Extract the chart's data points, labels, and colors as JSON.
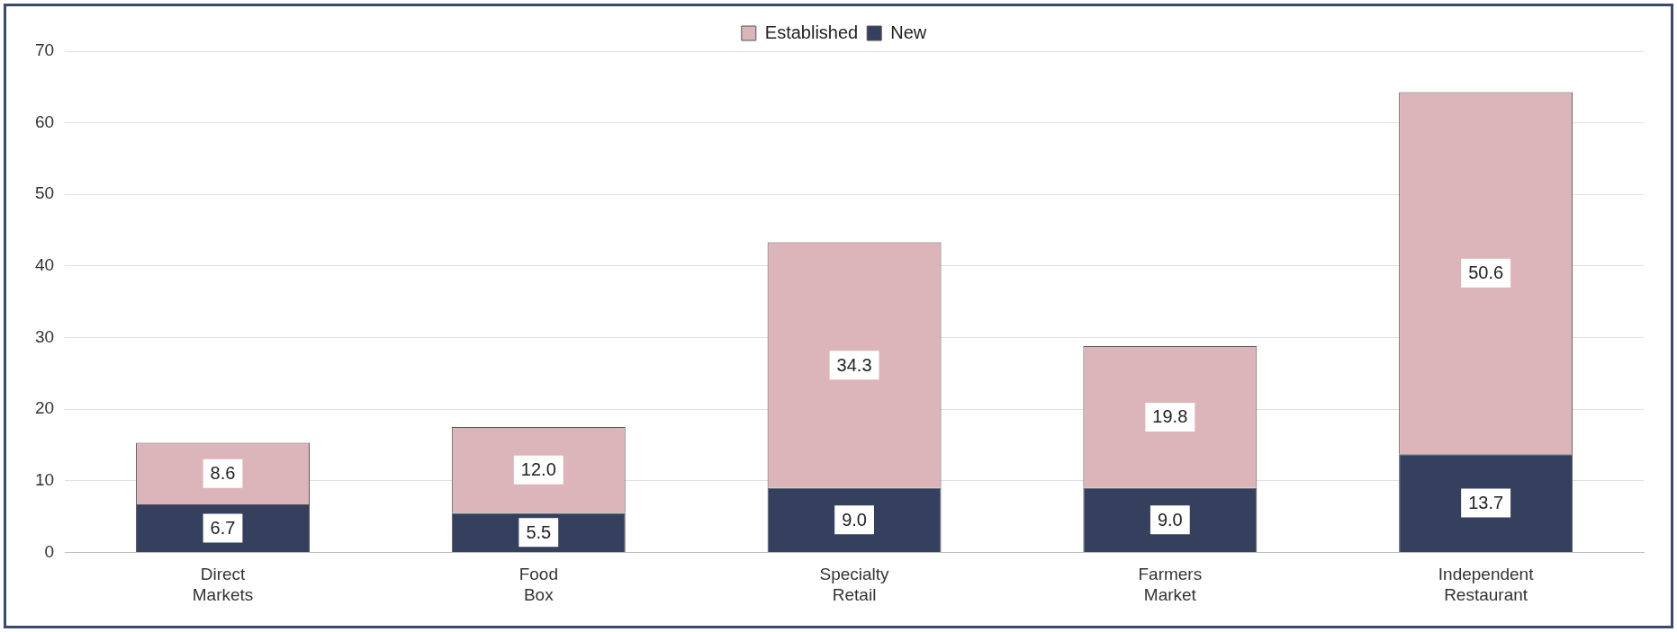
{
  "chart_data": {
    "type": "bar",
    "stacked": true,
    "categories": [
      "Direct Markets",
      "Food Box",
      "Specialty Retail",
      "Farmers Market",
      "Independent Restaurant"
    ],
    "series": [
      {
        "name": "New",
        "color": "#35405f",
        "values": [
          6.7,
          5.5,
          9.0,
          9.0,
          13.7
        ],
        "value_labels": [
          "6.7",
          "5.5",
          "9.0",
          "9.0",
          "13.7"
        ]
      },
      {
        "name": "Established",
        "color": "#dcb5ba",
        "values": [
          8.6,
          12.0,
          34.3,
          19.8,
          50.6
        ],
        "value_labels": [
          "8.6",
          "12.0",
          "34.3",
          "19.8",
          "50.6"
        ]
      }
    ],
    "ylim": [
      0,
      70
    ],
    "yticks": [
      0,
      10,
      20,
      30,
      40,
      50,
      60,
      70
    ],
    "grid": "y",
    "legend": "top"
  }
}
